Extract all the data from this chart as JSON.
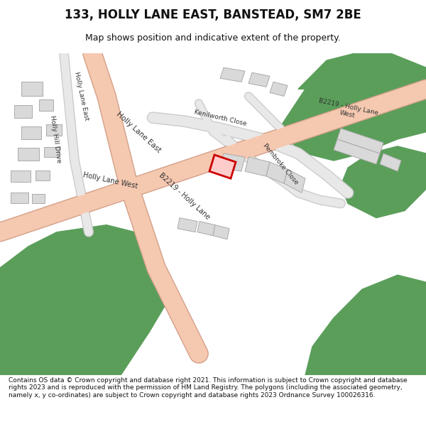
{
  "title": "133, HOLLY LANE EAST, BANSTEAD, SM7 2BE",
  "subtitle": "Map shows position and indicative extent of the property.",
  "footer": "Contains OS data © Crown copyright and database right 2021. This information is subject to Crown copyright and database rights 2023 and is reproduced with the permission of HM Land Registry. The polygons (including the associated geometry, namely x, y co-ordinates) are subject to Crown copyright and database rights 2023 Ordnance Survey 100026316.",
  "bg_color": "#ffffff",
  "map_bg": "#f2efe9",
  "road_color": "#f5c8b0",
  "road_outline": "#d4a08a",
  "green_color": "#5a9e5a",
  "building_color": "#d9d9d9",
  "building_outline": "#aaaaaa",
  "highlight_color": "#cc0000",
  "highlight_fill": "#ffcccc",
  "text_color": "#333333"
}
